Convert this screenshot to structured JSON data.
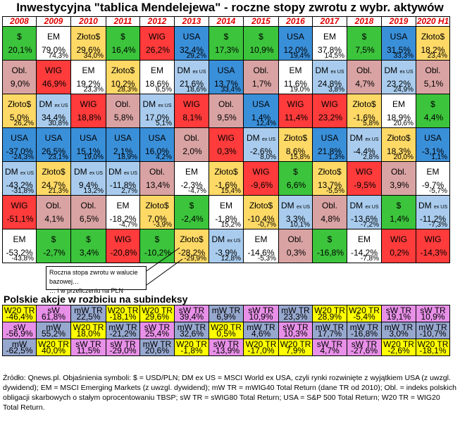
{
  "title": "Inwestycyjna \"tablica Mendelejewa\" - roczne stopy zwrotu z wybr. aktywów",
  "subtitle": "Polskie akcje w rozbiciu na subindeksy",
  "callout": {
    "line1": "Roczna stopa zwrotu w walucie  bazowej…",
    "line2": "… i w przeliczeniu na PLN"
  },
  "footnote": "Źródło: Qnews.pl. Objaśnienia symboli: $ = USD/PLN; DM ex US = MSCI World ex USA, czyli rynki rozwinięte z wyjątkiem USA (z uwzgl. dywidend); EM = MSCI Emerging Markets (z uwzgl. dywidend); mW TR = mWIG40 Total Return (dane TR od 2010); Obl. = indeks polskich obligacji skarbowych o stałym oprocentowaniu TBSP; sW TR = sWIG80 Total Return; USA = S&P 500 Total Return; W20 TR = WIG20 Total Return.",
  "colors": {
    "$": "#3cc43c",
    "EM": "#ffffff",
    "Złoto$": "#ffd966",
    "WIG": "#ff3b3b",
    "USA": "#3a8fd9",
    "Obl.": "#d9a3a3",
    "DM": "#a9ccee",
    "W20": "#ffff00",
    "sW": "#e890e8",
    "mW": "#97a8cf"
  },
  "chart_data": {
    "type": "table",
    "title": "Inwestycyjna \"tablica Mendelejewa\" - roczne stopy zwrotu z wybr. aktywów",
    "years": [
      "2008",
      "2009",
      "2010",
      "2011",
      "2012",
      "2013",
      "2014",
      "2015",
      "2016",
      "2017",
      "2018",
      "2019",
      "2020 H1"
    ],
    "rows": [
      [
        {
          "a": "$",
          "v": "20,1%"
        },
        {
          "a": "EM",
          "v": "79,0%",
          "p": "74,3%"
        },
        {
          "a": "Złoto$",
          "v": "29,6%",
          "p": "34,0%"
        },
        {
          "a": "$",
          "v": "16,4%"
        },
        {
          "a": "WIG",
          "v": "26,2%"
        },
        {
          "a": "USA",
          "v": "32,4%",
          "p": "29,2%"
        },
        {
          "a": "$",
          "v": "17,3%"
        },
        {
          "a": "$",
          "v": "10,9%"
        },
        {
          "a": "USA",
          "v": "12,0%",
          "p": "19,4%"
        },
        {
          "a": "EM",
          "v": "37,8%",
          "p": "14,5%"
        },
        {
          "a": "$",
          "v": "7,5%"
        },
        {
          "a": "USA",
          "v": "31,5%",
          "p": "33,3%"
        },
        {
          "a": "Złoto$",
          "v": "18,2%",
          "p": "23,4%"
        }
      ],
      [
        {
          "a": "Obl.",
          "v": "9,0%"
        },
        {
          "a": "WIG",
          "v": "46,9%"
        },
        {
          "a": "EM",
          "v": "19,2%",
          "p": "23,3%"
        },
        {
          "a": "Złoto$",
          "v": "10,2%",
          "p": "28,3%"
        },
        {
          "a": "EM",
          "v": "18,6%",
          "p": "6,5%"
        },
        {
          "a": "DM",
          "ex": "ex US",
          "v": "21,6%",
          "p": "18,6%"
        },
        {
          "a": "USA",
          "v": "13,7%",
          "p": "33,4%"
        },
        {
          "a": "Obl.",
          "v": "1,7%"
        },
        {
          "a": "EM",
          "v": "11,6%",
          "p": "19,0%"
        },
        {
          "a": "DM",
          "ex": "ex US",
          "v": "24,8%",
          "p": "3,8%"
        },
        {
          "a": "Obl.",
          "v": "4,7%"
        },
        {
          "a": "DM",
          "ex": "ex US",
          "v": "23,2%",
          "p": "24,9%"
        },
        {
          "a": "Obl.",
          "v": "5,1%"
        }
      ],
      [
        {
          "a": "Złoto$",
          "v": "5,0%",
          "p": "26,2%"
        },
        {
          "a": "DM",
          "ex": "ex US",
          "v": "34,4%",
          "p": "30,8%"
        },
        {
          "a": "WIG",
          "v": "18,8%"
        },
        {
          "a": "Obl.",
          "v": "5,8%"
        },
        {
          "a": "DM",
          "ex": "ex US",
          "v": "17,0%",
          "p": "5,1%"
        },
        {
          "a": "WIG",
          "v": "8,1%"
        },
        {
          "a": "Obl.",
          "v": "9,5%"
        },
        {
          "a": "USA",
          "v": "1,4%",
          "p": "12,4%"
        },
        {
          "a": "WIG",
          "v": "11,4%"
        },
        {
          "a": "WIG",
          "v": "23,2%"
        },
        {
          "a": "Złoto$",
          "v": "-1,6%",
          "p": "5,8%"
        },
        {
          "a": "EM",
          "v": "18,9%",
          "p": "20,6%"
        },
        {
          "a": "$",
          "v": "4,4%"
        }
      ],
      [
        {
          "a": "USA",
          "v": "-37,0%",
          "p": "-24,3%"
        },
        {
          "a": "USA",
          "v": "26,5%",
          "p": "23,1%"
        },
        {
          "a": "USA",
          "v": "15,1%",
          "p": "19,0%"
        },
        {
          "a": "USA",
          "v": "2,1%",
          "p": "18,9%"
        },
        {
          "a": "USA",
          "v": "16,0%",
          "p": "4,2%"
        },
        {
          "a": "Obl.",
          "v": "2,0%"
        },
        {
          "a": "WIG",
          "v": "0,3%"
        },
        {
          "a": "DM",
          "ex": "ex US",
          "v": "-2,6%",
          "p": "8,0%"
        },
        {
          "a": "Złoto$",
          "v": "8,6%",
          "p": "15,8%"
        },
        {
          "a": "USA",
          "v": "21,8%",
          "p": "1,3%"
        },
        {
          "a": "DM",
          "ex": "ex US",
          "v": "-4,4%",
          "p": "2,8%"
        },
        {
          "a": "Złoto$",
          "v": "18,3%",
          "p": "20,0%"
        },
        {
          "a": "USA",
          "v": "-3,1%",
          "p": "1,1%"
        }
      ],
      [
        {
          "a": "DM",
          "ex": "ex US",
          "v": "-43,2%",
          "p": "-31,8%"
        },
        {
          "a": "Złoto$",
          "v": "24,7%",
          "p": "21,3%"
        },
        {
          "a": "DM",
          "ex": "ex US",
          "v": "9,4%",
          "p": "13,2%"
        },
        {
          "a": "DM",
          "ex": "ex US",
          "v": "-11,8%",
          "p": "2,7%"
        },
        {
          "a": "Obl.",
          "v": "13,4%"
        },
        {
          "a": "EM",
          "v": "-2,3%",
          "p": "-4,7%"
        },
        {
          "a": "Złoto$",
          "v": "-1,6%",
          "p": "15,4%"
        },
        {
          "a": "WIG",
          "v": "-9,6%"
        },
        {
          "a": "$",
          "v": "6,6%"
        },
        {
          "a": "Złoto$",
          "v": "13,7%",
          "p": "-5,5%"
        },
        {
          "a": "WIG",
          "v": "-9,5%"
        },
        {
          "a": "Obl.",
          "v": "3,9%"
        },
        {
          "a": "EM",
          "v": "-9,7%",
          "p": "-5,7%"
        }
      ],
      [
        {
          "a": "WIG",
          "v": "-51,1%"
        },
        {
          "a": "Obl.",
          "v": "4,1%"
        },
        {
          "a": "Obl.",
          "v": "6,5%"
        },
        {
          "a": "EM",
          "v": "-18,2%",
          "p": "-4,7%"
        },
        {
          "a": "Złoto$",
          "v": "7,0%",
          "p": "-3,9%"
        },
        {
          "a": "$",
          "v": "-2,4%"
        },
        {
          "a": "EM",
          "v": "-1,8%",
          "p": "15,2%"
        },
        {
          "a": "Złoto$",
          "v": "-10,4%",
          "p": "-0,7%"
        },
        {
          "a": "DM",
          "ex": "ex US",
          "v": "3,3%",
          "p": "10,1%"
        },
        {
          "a": "Obl.",
          "v": "4,8%"
        },
        {
          "a": "DM",
          "ex": "ex US",
          "v": "-13,6%",
          "p": "-7,2%"
        },
        {
          "a": "$",
          "v": "1,4%"
        },
        {
          "a": "DM",
          "ex": "ex US",
          "v": "-11,2%",
          "p": "-7,3%"
        }
      ],
      [
        {
          "a": "EM",
          "v": "-53,2%",
          "p": "-43,8%"
        },
        {
          "a": "$",
          "v": "-2,7%"
        },
        {
          "a": "$",
          "v": "3,4%"
        },
        {
          "a": "WIG",
          "v": "-20,8%"
        },
        {
          "a": "$",
          "v": "-10,2%"
        },
        {
          "a": "Złoto$",
          "v": "-28,2%",
          "p": "-29,9%"
        },
        {
          "a": "DM",
          "ex": "ex US",
          "v": "-3,9%",
          "p": "12,8%"
        },
        {
          "a": "EM",
          "v": "-14,6%",
          "p": "-5,3%"
        },
        {
          "a": "Obl.",
          "v": "0,3%"
        },
        {
          "a": "$",
          "v": "-16,8%"
        },
        {
          "a": "EM",
          "v": "-14,2%",
          "p": "-7,8%"
        },
        {
          "a": "WIG",
          "v": "0,2%"
        },
        {
          "a": "WIG",
          "v": "-14,3%"
        }
      ]
    ],
    "sub_rows": [
      [
        {
          "a": "W20",
          "l": "W20 TR",
          "v": "-46,4%"
        },
        {
          "a": "sW",
          "l": "sW",
          "v": "61,8%"
        },
        {
          "a": "mW",
          "l": "mW TR",
          "v": "22,5%"
        },
        {
          "a": "W20",
          "l": "W20 TR",
          "v": "-18,1%"
        },
        {
          "a": "W20",
          "l": "W20 TR",
          "v": "29,6%"
        },
        {
          "a": "sW",
          "l": "sW TR",
          "v": "39,4%"
        },
        {
          "a": "mW",
          "l": "mW TR",
          "v": "6,9%"
        },
        {
          "a": "sW",
          "l": "sW TR",
          "v": "10,9%"
        },
        {
          "a": "mW",
          "l": "mW TR",
          "v": "23,3%"
        },
        {
          "a": "W20",
          "l": "W20 TR",
          "v": "28,9%"
        },
        {
          "a": "W20",
          "l": "W20 TR",
          "v": "-5,4%"
        },
        {
          "a": "sW",
          "l": "sW TR",
          "v": "19,1%"
        },
        {
          "a": "sW",
          "l": "sW TR",
          "v": "10,9%"
        }
      ],
      [
        {
          "a": "sW",
          "l": "sW",
          "v": "-56,9%"
        },
        {
          "a": "mW",
          "l": "mW",
          "v": "55,2%"
        },
        {
          "a": "W20",
          "l": "W20 TR",
          "v": "18,0%"
        },
        {
          "a": "mW",
          "l": "mW TR",
          "v": "-21,2%"
        },
        {
          "a": "sW",
          "l": "sW TR",
          "v": "25,4%"
        },
        {
          "a": "mW",
          "l": "mW TR",
          "v": "32,6%"
        },
        {
          "a": "W20",
          "l": "W20 TR",
          "v": "0,5%"
        },
        {
          "a": "mW",
          "l": "mW TR",
          "v": "4,6%"
        },
        {
          "a": "sW",
          "l": "sW TR",
          "v": "10,3%"
        },
        {
          "a": "mW",
          "l": "mW TR",
          "v": "17,7%"
        },
        {
          "a": "mW",
          "l": "mW TR",
          "v": "-16,8%"
        },
        {
          "a": "mW",
          "l": "mW TR",
          "v": "3,0%"
        },
        {
          "a": "mW",
          "l": "mW TR",
          "v": "-10,7%"
        }
      ],
      [
        {
          "a": "mW",
          "l": "mW",
          "v": "-62,5%"
        },
        {
          "a": "W20",
          "l": "W20 TR",
          "v": "40,0%"
        },
        {
          "a": "sW",
          "l": "sW TR",
          "v": "11,5%"
        },
        {
          "a": "sW",
          "l": "sW TR",
          "v": "-29,0%"
        },
        {
          "a": "mW",
          "l": "mW TR",
          "v": "20,6%"
        },
        {
          "a": "W20",
          "l": "W20 TR",
          "v": "-1,8%"
        },
        {
          "a": "sW",
          "l": "sW TR",
          "v": "-13,9%"
        },
        {
          "a": "W20",
          "l": "W20 TR",
          "v": "-17,0%"
        },
        {
          "a": "W20",
          "l": "W20 TR",
          "v": "7,9%"
        },
        {
          "a": "sW",
          "l": "sW TR",
          "v": "4,7%"
        },
        {
          "a": "sW",
          "l": "sW TR",
          "v": "-27,6%"
        },
        {
          "a": "W20",
          "l": "W20 TR",
          "v": "-2,6%"
        },
        {
          "a": "W20",
          "l": "W20 TR",
          "v": "-18,1%"
        }
      ]
    ]
  }
}
